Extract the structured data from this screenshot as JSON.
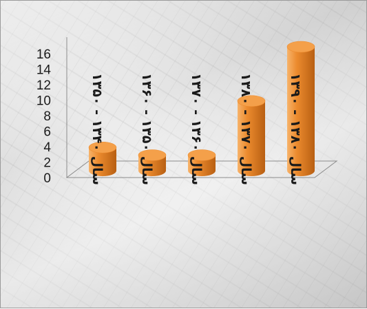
{
  "chart_data": {
    "type": "bar",
    "style": "3d-cylinder",
    "categories": [
      "سال ۱۳۴۰ - ۱۳۵۰",
      "سال ۱۳۵۰ - ۱۳۶۰",
      "سال ۱۳۶۰ - ۱۳۷۰",
      "سال ۱۳۷۰ - ۱۳۸۰",
      "سال ۱۳۸۰ - ۱۳۹۰"
    ],
    "values": [
      3,
      2,
      2,
      9,
      16
    ],
    "ylim": [
      0,
      16
    ],
    "yticks": [
      "0",
      "2",
      "4",
      "6",
      "8",
      "10",
      "12",
      "14",
      "16"
    ],
    "title": "",
    "xlabel": "",
    "ylabel": "",
    "grid": false,
    "legend": "none",
    "colors": {
      "bar_light": "#f7b36a",
      "bar_mid": "#ec8b2e",
      "bar_dark": "#b85f12",
      "bar_top": "#f4a04a",
      "axis": "#8c8c8c",
      "text": "#1a1a1a"
    }
  }
}
